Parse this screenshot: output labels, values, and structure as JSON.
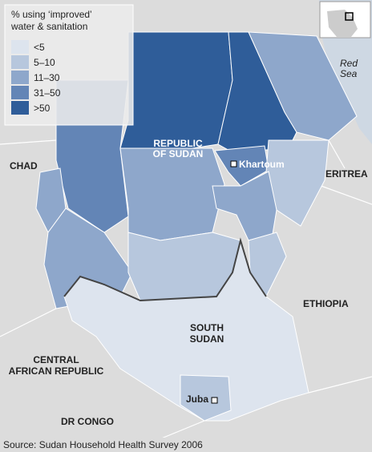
{
  "legend": {
    "title": [
      "% using ‘improved’",
      "water & sanitation"
    ],
    "items": [
      {
        "label": "<5",
        "color": "#dde4ee"
      },
      {
        "label": "5–10",
        "color": "#b7c7dd"
      },
      {
        "label": "11–30",
        "color": "#8ea7cb"
      },
      {
        "label": "31–50",
        "color": "#6385b6"
      },
      {
        "label": ">50",
        "color": "#2f5d99"
      }
    ]
  },
  "labels": {
    "sudan": [
      "REPUBLIC",
      "OF SUDAN"
    ],
    "south_sudan": [
      "SOUTH",
      "SUDAN"
    ],
    "car": [
      "CENTRAL",
      "AFRICAN REPUBLIC"
    ],
    "chad": "CHAD",
    "eritrea": "ERITREA",
    "ethiopia": "ETHIOPIA",
    "dr_congo": "DR CONGO",
    "khartoum": "Khartoum",
    "juba": "Juba",
    "red_sea": [
      "Red",
      "Sea"
    ]
  },
  "source": "Source: Sudan Household Health Survey 2006"
}
